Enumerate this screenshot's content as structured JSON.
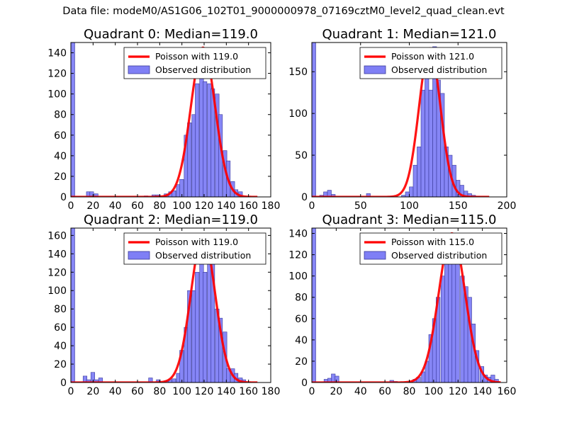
{
  "figure": {
    "title": "Data file: modeM0/AS1G06_102T01_9000000978_07169cztM0_level2_quad_clean.evt"
  },
  "colors": {
    "bar_fill": "#7f7ff5",
    "bar_edge": "#3a3a9a",
    "poisson_line": "#ff0000"
  },
  "chart_data": [
    {
      "type": "bar",
      "title": "Quadrant 0: Median=119.0",
      "xlim": [
        0,
        180
      ],
      "ylim": [
        0,
        150
      ],
      "xticks": [
        0,
        20,
        40,
        60,
        80,
        100,
        120,
        140,
        160,
        180
      ],
      "yticks": [
        0,
        20,
        40,
        60,
        80,
        100,
        120,
        140
      ],
      "grid": false,
      "legend_position": "top-right",
      "legend": [
        "Poisson with 119.0",
        "Observed distribution"
      ],
      "poisson": {
        "name": "Poisson with 119.0",
        "lambda": 119.0,
        "peak": 145,
        "x_range": [
          0,
          168
        ]
      },
      "histogram": {
        "name": "Observed distribution",
        "bin_width": 3.5,
        "bins": [
          [
            0,
            150
          ],
          [
            14,
            5
          ],
          [
            17,
            5
          ],
          [
            21,
            3
          ],
          [
            66,
            1
          ],
          [
            73,
            2
          ],
          [
            77,
            2
          ],
          [
            84,
            3
          ],
          [
            88,
            5
          ],
          [
            91,
            6
          ],
          [
            95,
            12
          ],
          [
            98,
            17
          ],
          [
            102,
            60
          ],
          [
            105,
            72
          ],
          [
            109,
            80
          ],
          [
            112,
            110
          ],
          [
            116,
            140
          ],
          [
            119,
            112
          ],
          [
            123,
            110
          ],
          [
            126,
            105
          ],
          [
            130,
            100
          ],
          [
            133,
            80
          ],
          [
            137,
            45
          ],
          [
            140,
            35
          ],
          [
            144,
            15
          ],
          [
            147,
            7
          ],
          [
            151,
            5
          ]
        ]
      }
    },
    {
      "type": "bar",
      "title": "Quadrant 1: Median=121.0",
      "xlim": [
        0,
        200
      ],
      "ylim": [
        0,
        185
      ],
      "xticks": [
        0,
        50,
        100,
        150,
        200
      ],
      "yticks": [
        0,
        50,
        100,
        150
      ],
      "grid": false,
      "legend_position": "top-right",
      "legend": [
        "Poisson with 121.0",
        "Observed distribution"
      ],
      "poisson": {
        "name": "Poisson with 121.0",
        "lambda": 121.0,
        "peak": 178,
        "x_range": [
          0,
          182
        ]
      },
      "histogram": {
        "name": "Observed distribution",
        "bin_width": 4,
        "bins": [
          [
            0,
            185
          ],
          [
            8,
            2
          ],
          [
            12,
            6
          ],
          [
            16,
            8
          ],
          [
            20,
            3
          ],
          [
            56,
            4
          ],
          [
            80,
            1
          ],
          [
            92,
            2
          ],
          [
            96,
            6
          ],
          [
            100,
            12
          ],
          [
            104,
            38
          ],
          [
            108,
            60
          ],
          [
            112,
            128
          ],
          [
            116,
            150
          ],
          [
            120,
            128
          ],
          [
            124,
            180
          ],
          [
            128,
            140
          ],
          [
            132,
            124
          ],
          [
            136,
            60
          ],
          [
            140,
            50
          ],
          [
            144,
            38
          ],
          [
            148,
            20
          ],
          [
            152,
            14
          ],
          [
            156,
            7
          ],
          [
            160,
            4
          ],
          [
            164,
            2
          ],
          [
            168,
            1
          ]
        ]
      }
    },
    {
      "type": "bar",
      "title": "Quadrant 2: Median=119.0",
      "xlim": [
        0,
        180
      ],
      "ylim": [
        0,
        168
      ],
      "xticks": [
        0,
        20,
        40,
        60,
        80,
        100,
        120,
        140,
        160,
        180
      ],
      "yticks": [
        0,
        20,
        40,
        60,
        80,
        100,
        120,
        140,
        160
      ],
      "grid": false,
      "legend_position": "top-right",
      "legend": [
        "Poisson with 119.0",
        "Observed distribution"
      ],
      "poisson": {
        "name": "Poisson with 119.0",
        "lambda": 119.0,
        "peak": 160,
        "x_range": [
          0,
          168
        ]
      },
      "histogram": {
        "name": "Observed distribution",
        "bin_width": 3.5,
        "bins": [
          [
            0,
            168
          ],
          [
            11,
            7
          ],
          [
            14,
            3
          ],
          [
            18,
            11
          ],
          [
            21,
            3
          ],
          [
            25,
            5
          ],
          [
            70,
            5
          ],
          [
            77,
            3
          ],
          [
            84,
            2
          ],
          [
            88,
            3
          ],
          [
            91,
            4
          ],
          [
            95,
            10
          ],
          [
            98,
            35
          ],
          [
            102,
            60
          ],
          [
            105,
            100
          ],
          [
            109,
            100
          ],
          [
            112,
            120
          ],
          [
            116,
            160
          ],
          [
            119,
            120
          ],
          [
            123,
            140
          ],
          [
            126,
            130
          ],
          [
            130,
            80
          ],
          [
            133,
            70
          ],
          [
            137,
            55
          ],
          [
            140,
            15
          ],
          [
            144,
            15
          ],
          [
            147,
            10
          ],
          [
            151,
            5
          ],
          [
            154,
            3
          ]
        ]
      }
    },
    {
      "type": "bar",
      "title": "Quadrant 3: Median=115.0",
      "xlim": [
        0,
        160
      ],
      "ylim": [
        0,
        145
      ],
      "xticks": [
        0,
        20,
        40,
        60,
        80,
        100,
        120,
        140,
        160
      ],
      "yticks": [
        0,
        20,
        40,
        60,
        80,
        100,
        120,
        140
      ],
      "grid": false,
      "legend_position": "top-right",
      "legend": [
        "Poisson with 115.0",
        "Observed distribution"
      ],
      "poisson": {
        "name": "Poisson with 115.0",
        "lambda": 115.0,
        "peak": 140,
        "x_range": [
          0,
          155
        ]
      },
      "histogram": {
        "name": "Observed distribution",
        "bin_width": 3.2,
        "bins": [
          [
            0,
            145
          ],
          [
            10,
            3
          ],
          [
            13,
            4
          ],
          [
            16,
            8
          ],
          [
            19,
            6
          ],
          [
            64,
            2
          ],
          [
            67,
            1
          ],
          [
            83,
            3
          ],
          [
            86,
            5
          ],
          [
            90,
            10
          ],
          [
            93,
            20
          ],
          [
            96,
            45
          ],
          [
            99,
            60
          ],
          [
            102,
            80
          ],
          [
            106,
            100
          ],
          [
            109,
            130
          ],
          [
            112,
            140
          ],
          [
            115,
            120
          ],
          [
            118,
            115
          ],
          [
            122,
            100
          ],
          [
            125,
            90
          ],
          [
            128,
            80
          ],
          [
            131,
            55
          ],
          [
            134,
            30
          ],
          [
            138,
            15
          ],
          [
            141,
            7
          ],
          [
            144,
            5
          ],
          [
            147,
            7
          ],
          [
            150,
            3
          ]
        ]
      }
    }
  ]
}
